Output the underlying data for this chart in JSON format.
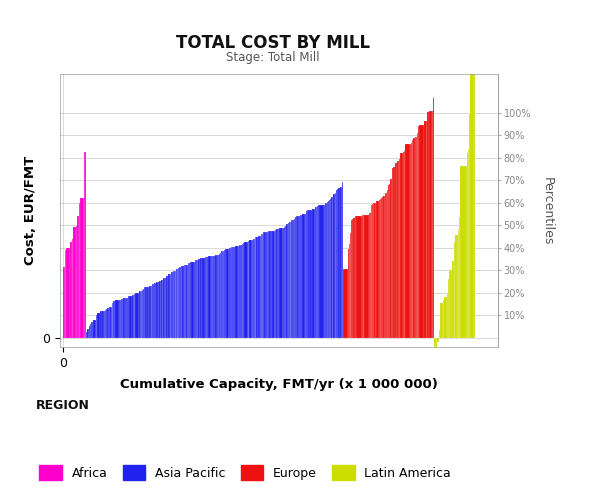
{
  "title": "TOTAL COST BY MILL",
  "subtitle": "Stage: Total Mill",
  "xlabel": "Cumulative Capacity, FMT/yr (x 1 000 000)",
  "ylabel": "Cost, EUR/FMT",
  "right_ylabel": "Percentiles",
  "background_color": "#ffffff",
  "plot_bg_color": "#ffffff",
  "grid_color": "#cccccc",
  "title_fontsize": 12,
  "subtitle_fontsize": 8.5,
  "axis_label_fontsize": 9.5,
  "regions": [
    "Africa",
    "Asia Pacific",
    "Europe",
    "Latin America"
  ],
  "region_colors": [
    "#FF00CC",
    "#2222EE",
    "#EE1111",
    "#CCDD00"
  ],
  "legend_title": "REGION",
  "percentile_labels": [
    "10%",
    "20%",
    "30%",
    "40%",
    "50%",
    "60%",
    "70%",
    "80%",
    "90%",
    "100%"
  ],
  "africa_x_end": 0.3,
  "asia_x_end": 3.7,
  "europe_x_end": 4.9,
  "latam_x_end": 5.45,
  "ylim_min": -30,
  "ylim_max": 820,
  "xlim_min": -0.04,
  "xlim_max": 5.75,
  "pct_cost_map": {
    "10%": 70,
    "20%": 140,
    "30%": 210,
    "40%": 280,
    "50%": 350,
    "60%": 420,
    "70%": 490,
    "80%": 560,
    "90%": 630,
    "100%": 700
  },
  "seed": 42
}
